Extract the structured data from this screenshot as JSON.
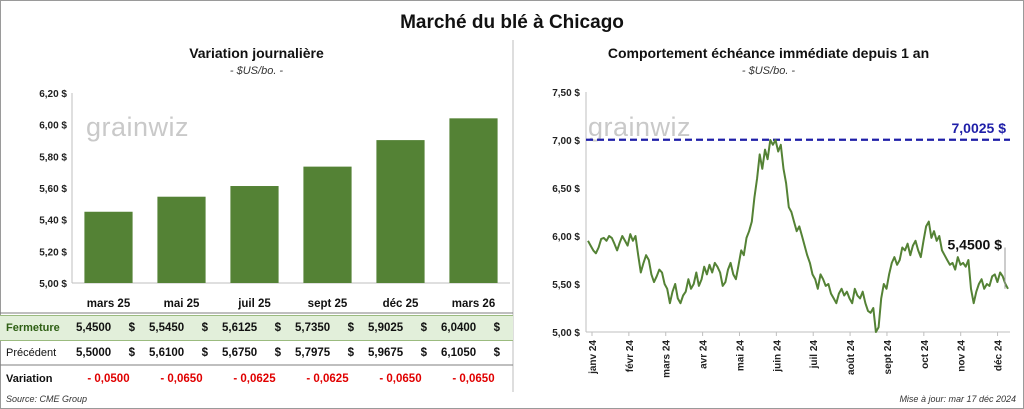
{
  "page": {
    "title": "Marché du blé à Chicago",
    "source": "Source: CME Group",
    "updated": "Mise à jour: mar 17 déc 2024",
    "watermark": "grainwiz"
  },
  "left_panel": {
    "title": "Variation journalière",
    "unit": "- $US/bo. -",
    "table": {
      "columns": [
        "mars 25",
        "mai 25",
        "juil 25",
        "sept 25",
        "déc 25",
        "mars 26"
      ],
      "rows": [
        {
          "label": "Fermeture",
          "values": [
            "5,4500",
            "5,5450",
            "5,6125",
            "5,7350",
            "5,9025",
            "6,0400"
          ]
        },
        {
          "label": "Précédent",
          "values": [
            "5,5000",
            "5,6100",
            "5,6750",
            "5,7975",
            "5,9675",
            "6,1050"
          ]
        },
        {
          "label": "Variation",
          "values": [
            "- 0,0500",
            "- 0,0650",
            "- 0,0625",
            "- 0,0625",
            "- 0,0650",
            "- 0,0650"
          ]
        }
      ]
    }
  },
  "right_panel": {
    "title": "Comportement échéance immédiate depuis 1 an",
    "unit": "- $US/bo. -",
    "max_label": "7,0025 $",
    "last_label": "5,4500 $"
  },
  "colors": {
    "bar": "#548235",
    "line": "#548235",
    "max_line": "#1f1fa8",
    "highlight_row": "#e2efda",
    "negative": "#e00000"
  },
  "chart_data": [
    {
      "type": "bar",
      "title": "Variation journalière",
      "categories": [
        "mars 25",
        "mai 25",
        "juil 25",
        "sept 25",
        "déc 25",
        "mars 26"
      ],
      "values": [
        5.45,
        5.545,
        5.6125,
        5.735,
        5.9025,
        6.04
      ],
      "ylim": [
        5.0,
        6.2
      ],
      "yticks": [
        "5,00 $",
        "5,20 $",
        "5,40 $",
        "5,60 $",
        "5,80 $",
        "6,00 $",
        "6,20 $"
      ],
      "grid": false
    },
    {
      "type": "line",
      "title": "Comportement échéance immédiate depuis 1 an",
      "ylim": [
        5.0,
        7.5
      ],
      "yticks": [
        "5,00 $",
        "5,50 $",
        "6,00 $",
        "6,50 $",
        "7,00 $",
        "7,50 $"
      ],
      "xticks": [
        "janv 24",
        "févr 24",
        "mars 24",
        "avr 24",
        "mai 24",
        "juin 24",
        "juil 24",
        "août 24",
        "sept 24",
        "oct 24",
        "nov 24",
        "déc 24"
      ],
      "reference_line": 7.0025,
      "values": [
        5.95,
        5.9,
        5.85,
        5.82,
        5.88,
        5.97,
        5.98,
        5.95,
        6.0,
        5.98,
        5.92,
        5.85,
        5.93,
        6.0,
        5.95,
        5.9,
        6.02,
        5.95,
        6.0,
        5.8,
        5.62,
        5.72,
        5.8,
        5.75,
        5.6,
        5.52,
        5.58,
        5.65,
        5.62,
        5.5,
        5.45,
        5.3,
        5.42,
        5.5,
        5.35,
        5.3,
        5.38,
        5.42,
        5.55,
        5.45,
        5.5,
        5.62,
        5.48,
        5.55,
        5.68,
        5.6,
        5.7,
        5.62,
        5.72,
        5.68,
        5.62,
        5.48,
        5.52,
        5.65,
        5.72,
        5.6,
        5.55,
        5.7,
        5.85,
        5.8,
        5.98,
        6.05,
        6.15,
        6.4,
        6.6,
        6.85,
        6.7,
        6.9,
        6.8,
        7.0,
        6.95,
        7.0,
        6.88,
        6.95,
        6.7,
        6.55,
        6.3,
        6.25,
        6.15,
        6.05,
        6.1,
        6.0,
        5.9,
        5.8,
        5.72,
        5.6,
        5.55,
        5.45,
        5.6,
        5.55,
        5.48,
        5.5,
        5.4,
        5.35,
        5.3,
        5.4,
        5.45,
        5.38,
        5.42,
        5.35,
        5.3,
        5.45,
        5.38,
        5.35,
        5.42,
        5.3,
        5.22,
        5.2,
        5.25,
        5.0,
        5.05,
        5.35,
        5.5,
        5.45,
        5.6,
        5.72,
        5.78,
        5.7,
        5.75,
        5.88,
        5.85,
        5.92,
        5.8,
        5.9,
        5.95,
        5.85,
        5.78,
        5.95,
        6.1,
        6.15,
        5.98,
        6.05,
        5.95,
        6.0,
        5.85,
        5.8,
        5.75,
        5.7,
        5.72,
        5.65,
        5.78,
        5.7,
        5.72,
        5.68,
        5.75,
        5.45,
        5.3,
        5.42,
        5.5,
        5.55,
        5.45,
        5.5,
        5.48,
        5.58,
        5.6,
        5.52,
        5.62,
        5.58,
        5.5,
        5.45
      ]
    }
  ]
}
